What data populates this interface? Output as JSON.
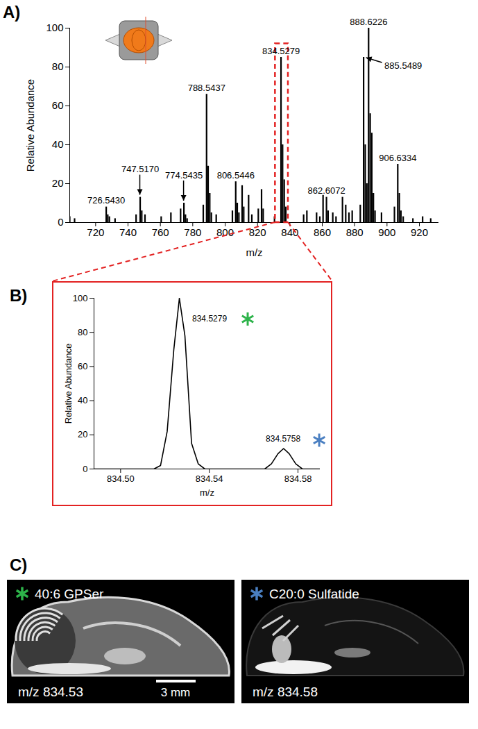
{
  "chart_data": [
    {
      "type": "bar",
      "title": "A)",
      "x_label": "m/z",
      "y_label": "Relative Abundance",
      "color": "#000000",
      "x": [
        704,
        707,
        726.543,
        727.5,
        728.5,
        732,
        745,
        747.517,
        748.5,
        750.5,
        760.5,
        766.5,
        772.5,
        774.5435,
        775.5,
        776.5,
        786.5,
        788.5437,
        789.5,
        790.5,
        791.5,
        794.5,
        804.5,
        806.5446,
        807.5,
        808.5,
        810.5,
        811.5,
        814.5,
        816.5,
        820.5,
        822.5,
        823.5,
        830.5,
        834.5279,
        835.5,
        836.5,
        837.5,
        848.5,
        850.5,
        856.5,
        858.5,
        860.5,
        862.6072,
        863.6,
        866.5,
        868.5,
        872.5,
        874.5,
        876.5,
        878.5,
        883.5,
        885.5489,
        886.55,
        887.55,
        888.6226,
        889.6,
        890.6,
        891.6,
        892.6,
        896.6,
        904.6,
        906.6334,
        907.6,
        908.6,
        910,
        916,
        922,
        927
      ],
      "values": [
        3,
        2,
        8,
        4,
        3,
        2,
        4,
        13,
        6,
        4,
        3,
        5,
        7,
        10,
        4,
        2,
        9,
        66,
        29,
        15,
        5,
        4,
        6,
        21,
        10,
        5,
        19,
        8,
        14,
        4,
        7,
        17,
        7,
        3,
        85,
        40,
        22,
        8,
        4,
        6,
        5,
        3,
        14,
        13,
        6,
        5,
        3,
        13,
        9,
        5,
        6,
        9,
        85,
        40,
        20,
        100,
        56,
        46,
        15,
        6,
        5,
        8,
        30,
        15,
        6,
        3,
        2,
        3,
        2
      ],
      "xlim": [
        704,
        932
      ],
      "ylim": [
        0,
        100
      ],
      "xticks": [
        720,
        740,
        760,
        780,
        800,
        820,
        840,
        860,
        880,
        900,
        920
      ],
      "yticks": [
        0,
        20,
        40,
        60,
        80,
        100
      ],
      "annotations": [
        {
          "text": "726.5430",
          "x": 726.543,
          "y": 8
        },
        {
          "text": "747.5170",
          "x": 747.517,
          "y": 13,
          "arrow": "down"
        },
        {
          "text": "774.5435",
          "x": 774.5435,
          "y": 10,
          "arrow": "down"
        },
        {
          "text": "788.5437",
          "x": 788.5437,
          "y": 66
        },
        {
          "text": "806.5446",
          "x": 806.5446,
          "y": 21
        },
        {
          "text": "834.5279",
          "x": 834.5279,
          "y": 85
        },
        {
          "text": "862.6072",
          "x": 862.6072,
          "y": 13
        },
        {
          "text": "885.5489",
          "x": 885.5489,
          "y": 85,
          "arrow": "left"
        },
        {
          "text": "888.6226",
          "x": 888.6226,
          "y": 100
        },
        {
          "text": "906.6334",
          "x": 906.6334,
          "y": 30
        }
      ],
      "highlight": {
        "x": [
          831,
          839
        ],
        "y": [
          0,
          92
        ]
      }
    },
    {
      "type": "line",
      "title": "B)",
      "x_label": "m/z",
      "y_label": "Relative Abundance",
      "color": "#000000",
      "x": [
        834.488,
        834.515,
        834.518,
        834.521,
        834.524,
        834.5265,
        834.529,
        834.532,
        834.535,
        834.538,
        834.565,
        834.568,
        834.571,
        834.5735,
        834.576,
        834.579,
        834.582,
        834.59
      ],
      "values": [
        0,
        0,
        2,
        22,
        70,
        100,
        78,
        15,
        3,
        0,
        0,
        3,
        9,
        12,
        9,
        3,
        0,
        0
      ],
      "xlim": [
        834.488,
        834.59
      ],
      "ylim": [
        0,
        100
      ],
      "xticks": [
        {
          "value": 834.5,
          "label": "834.50"
        },
        {
          "value": 834.54,
          "label": "834.54"
        },
        {
          "value": 834.58,
          "label": "834.58"
        }
      ],
      "yticks": [
        0,
        20,
        40,
        60,
        80,
        100
      ],
      "annotations": [
        {
          "text": "834.5279",
          "x": 834.5279,
          "y": 100,
          "position": "right",
          "color": "#2db34a"
        },
        {
          "text": "834.5758",
          "x": 834.5758,
          "y": 12,
          "position": "above",
          "color": "#4a7fc1"
        }
      ]
    }
  ],
  "panel_c": {
    "label": "C)",
    "scale_bar": "3 mm",
    "panels": [
      {
        "title": "40:6 GPSer",
        "subtitle": "m/z 834.53",
        "color": "#2db34a"
      },
      {
        "title": "C20:0 Sulfatide",
        "subtitle": "m/z 834.58",
        "color": "#4a7fc1"
      }
    ]
  }
}
